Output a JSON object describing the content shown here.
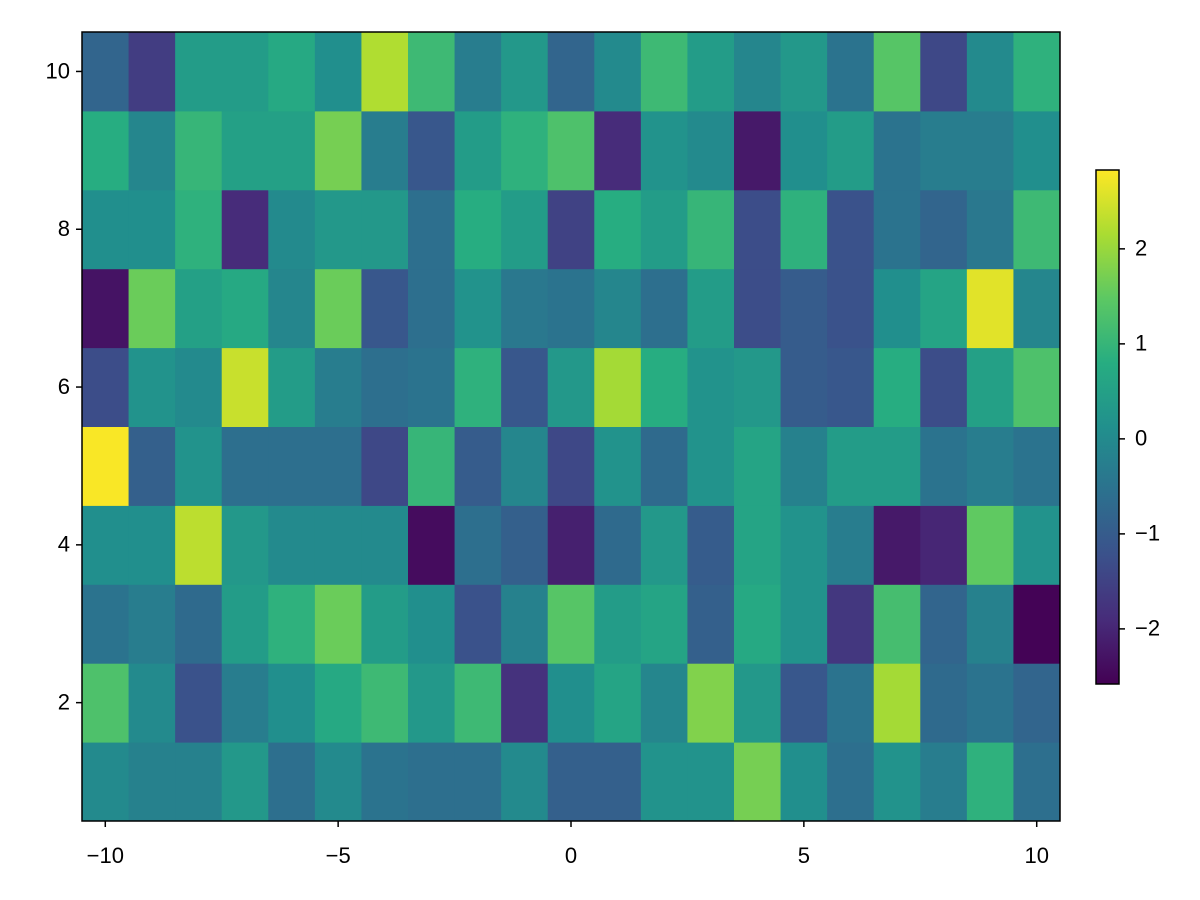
{
  "chart_data": {
    "type": "heatmap",
    "x": [
      -10,
      -9,
      -8,
      -7,
      -6,
      -5,
      -4,
      -3,
      -2,
      -1,
      0,
      1,
      2,
      3,
      4,
      5,
      6,
      7,
      8,
      9,
      10
    ],
    "y": [
      1,
      2,
      3,
      4,
      5,
      6,
      7,
      8,
      9,
      10
    ],
    "values": [
      [
        0.0,
        -0.2,
        -0.2,
        0.3,
        -0.6,
        0.0,
        -0.5,
        -0.6,
        -0.6,
        0.0,
        -0.9,
        -0.9,
        0.2,
        0.2,
        1.7,
        0.1,
        -0.6,
        0.2,
        -0.3,
        0.9,
        -0.6
      ],
      [
        1.3,
        0.0,
        -1.2,
        -0.3,
        0.1,
        0.7,
        1.1,
        0.3,
        1.1,
        -1.8,
        0.1,
        0.6,
        -0.1,
        1.8,
        0.3,
        -1.1,
        -0.5,
        2.1,
        -0.7,
        -0.5,
        -0.8
      ],
      [
        -0.5,
        -0.3,
        -0.7,
        0.4,
        0.9,
        1.6,
        0.4,
        0.1,
        -1.2,
        -0.2,
        1.4,
        0.4,
        0.6,
        -0.9,
        0.7,
        0.2,
        -1.7,
        1.2,
        -0.8,
        -0.2,
        -2.55
      ],
      [
        0.1,
        0.1,
        2.3,
        0.3,
        0.0,
        0.0,
        0.0,
        -2.4,
        -0.6,
        -0.9,
        -2.1,
        -0.7,
        0.3,
        -1.0,
        0.6,
        0.2,
        -0.3,
        -2.2,
        -2.0,
        1.5,
        0.2
      ],
      [
        2.8,
        -0.9,
        0.2,
        -0.6,
        -0.6,
        -0.6,
        -1.4,
        1.0,
        -1.0,
        -0.1,
        -1.4,
        0.2,
        -0.7,
        0.2,
        0.6,
        -0.2,
        0.4,
        0.4,
        -0.5,
        -0.3,
        -0.5
      ],
      [
        -1.3,
        0.2,
        0.0,
        2.4,
        0.4,
        -0.3,
        -0.6,
        -0.5,
        0.9,
        -1.1,
        0.3,
        2.1,
        0.8,
        0.2,
        0.3,
        -1.0,
        -1.1,
        0.8,
        -1.3,
        0.5,
        1.3
      ],
      [
        -2.3,
        1.6,
        0.5,
        0.7,
        -0.1,
        1.6,
        -1.1,
        -0.6,
        0.2,
        -0.4,
        -0.5,
        -0.1,
        -0.6,
        0.4,
        -1.3,
        -1.0,
        -1.2,
        0.1,
        0.6,
        2.6,
        -0.1
      ],
      [
        0.1,
        0.1,
        0.9,
        -1.9,
        0.0,
        0.3,
        0.3,
        -0.6,
        0.8,
        0.4,
        -1.5,
        0.8,
        0.4,
        1.0,
        -1.3,
        0.9,
        -1.2,
        -0.5,
        -0.8,
        -0.4,
        1.1
      ],
      [
        0.8,
        -0.1,
        1.0,
        0.5,
        0.5,
        1.7,
        -0.3,
        -1.1,
        0.4,
        0.9,
        1.3,
        -1.9,
        0.2,
        0.0,
        -2.2,
        0.1,
        0.4,
        -0.5,
        -0.3,
        -0.3,
        0.1
      ],
      [
        -0.8,
        -1.6,
        0.4,
        0.4,
        0.7,
        0.1,
        2.2,
        1.1,
        -0.3,
        0.3,
        -0.8,
        0.0,
        1.1,
        0.4,
        -0.1,
        0.3,
        -0.5,
        1.4,
        -1.4,
        0.0,
        0.9
      ]
    ],
    "colormap": [
      "#440154",
      "#472c7a",
      "#3b518b",
      "#2c718e",
      "#21908d",
      "#27ad81",
      "#5cc863",
      "#aadc32",
      "#fde725"
    ],
    "clim": [
      -2.58,
      2.83
    ],
    "cticks": [
      {
        "value": -2,
        "label": "−2"
      },
      {
        "value": -1,
        "label": "−1"
      },
      0,
      1,
      2
    ],
    "xlim": [
      -10.5,
      10.5
    ],
    "ylim": [
      0.5,
      10.5
    ],
    "xticks": [
      {
        "value": -10,
        "label": "−10"
      },
      {
        "value": -5,
        "label": "−5"
      },
      0,
      5,
      10
    ],
    "yticks": [
      2,
      4,
      6,
      8,
      10
    ]
  }
}
